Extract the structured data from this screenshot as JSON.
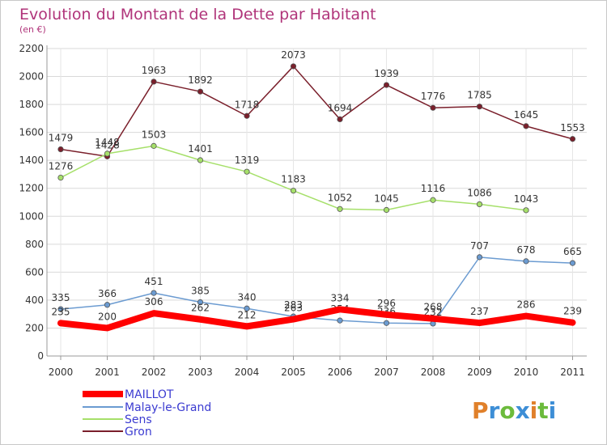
{
  "chart_data": {
    "type": "line",
    "title": "Evolution du Montant de la Dette par Habitant",
    "subtitle": "(en €)",
    "xlabel": "",
    "ylabel": "",
    "x": [
      "2000",
      "2001",
      "2002",
      "2003",
      "2004",
      "2005",
      "2006",
      "2007",
      "2008",
      "2009",
      "2010",
      "2011"
    ],
    "ylim": [
      0,
      2200
    ],
    "yticks": [
      0,
      200,
      400,
      600,
      800,
      1000,
      1200,
      1400,
      1600,
      1800,
      2000,
      2200
    ],
    "grid": true,
    "legend_position": "bottom-left",
    "series": [
      {
        "name": "MAILLOT",
        "color": "#ff0000",
        "values": [
          235,
          200,
          306,
          262,
          212,
          263,
          334,
          296,
          268,
          237,
          286,
          239
        ]
      },
      {
        "name": "Malay-le-Grand",
        "color": "#6b9bd1",
        "values": [
          335,
          366,
          451,
          385,
          340,
          283,
          254,
          236,
          232,
          707,
          678,
          665
        ]
      },
      {
        "name": "Sens",
        "color": "#a6e06a",
        "values": [
          1276,
          1448,
          1503,
          1401,
          1319,
          1183,
          1052,
          1045,
          1116,
          1086,
          1043,
          null
        ]
      },
      {
        "name": "Gron",
        "color": "#7a1f2b",
        "values": [
          1479,
          1428,
          1963,
          1892,
          1718,
          2073,
          1694,
          1939,
          1776,
          1785,
          1645,
          1553
        ]
      }
    ]
  },
  "watermark": {
    "text": "Proxiti"
  }
}
